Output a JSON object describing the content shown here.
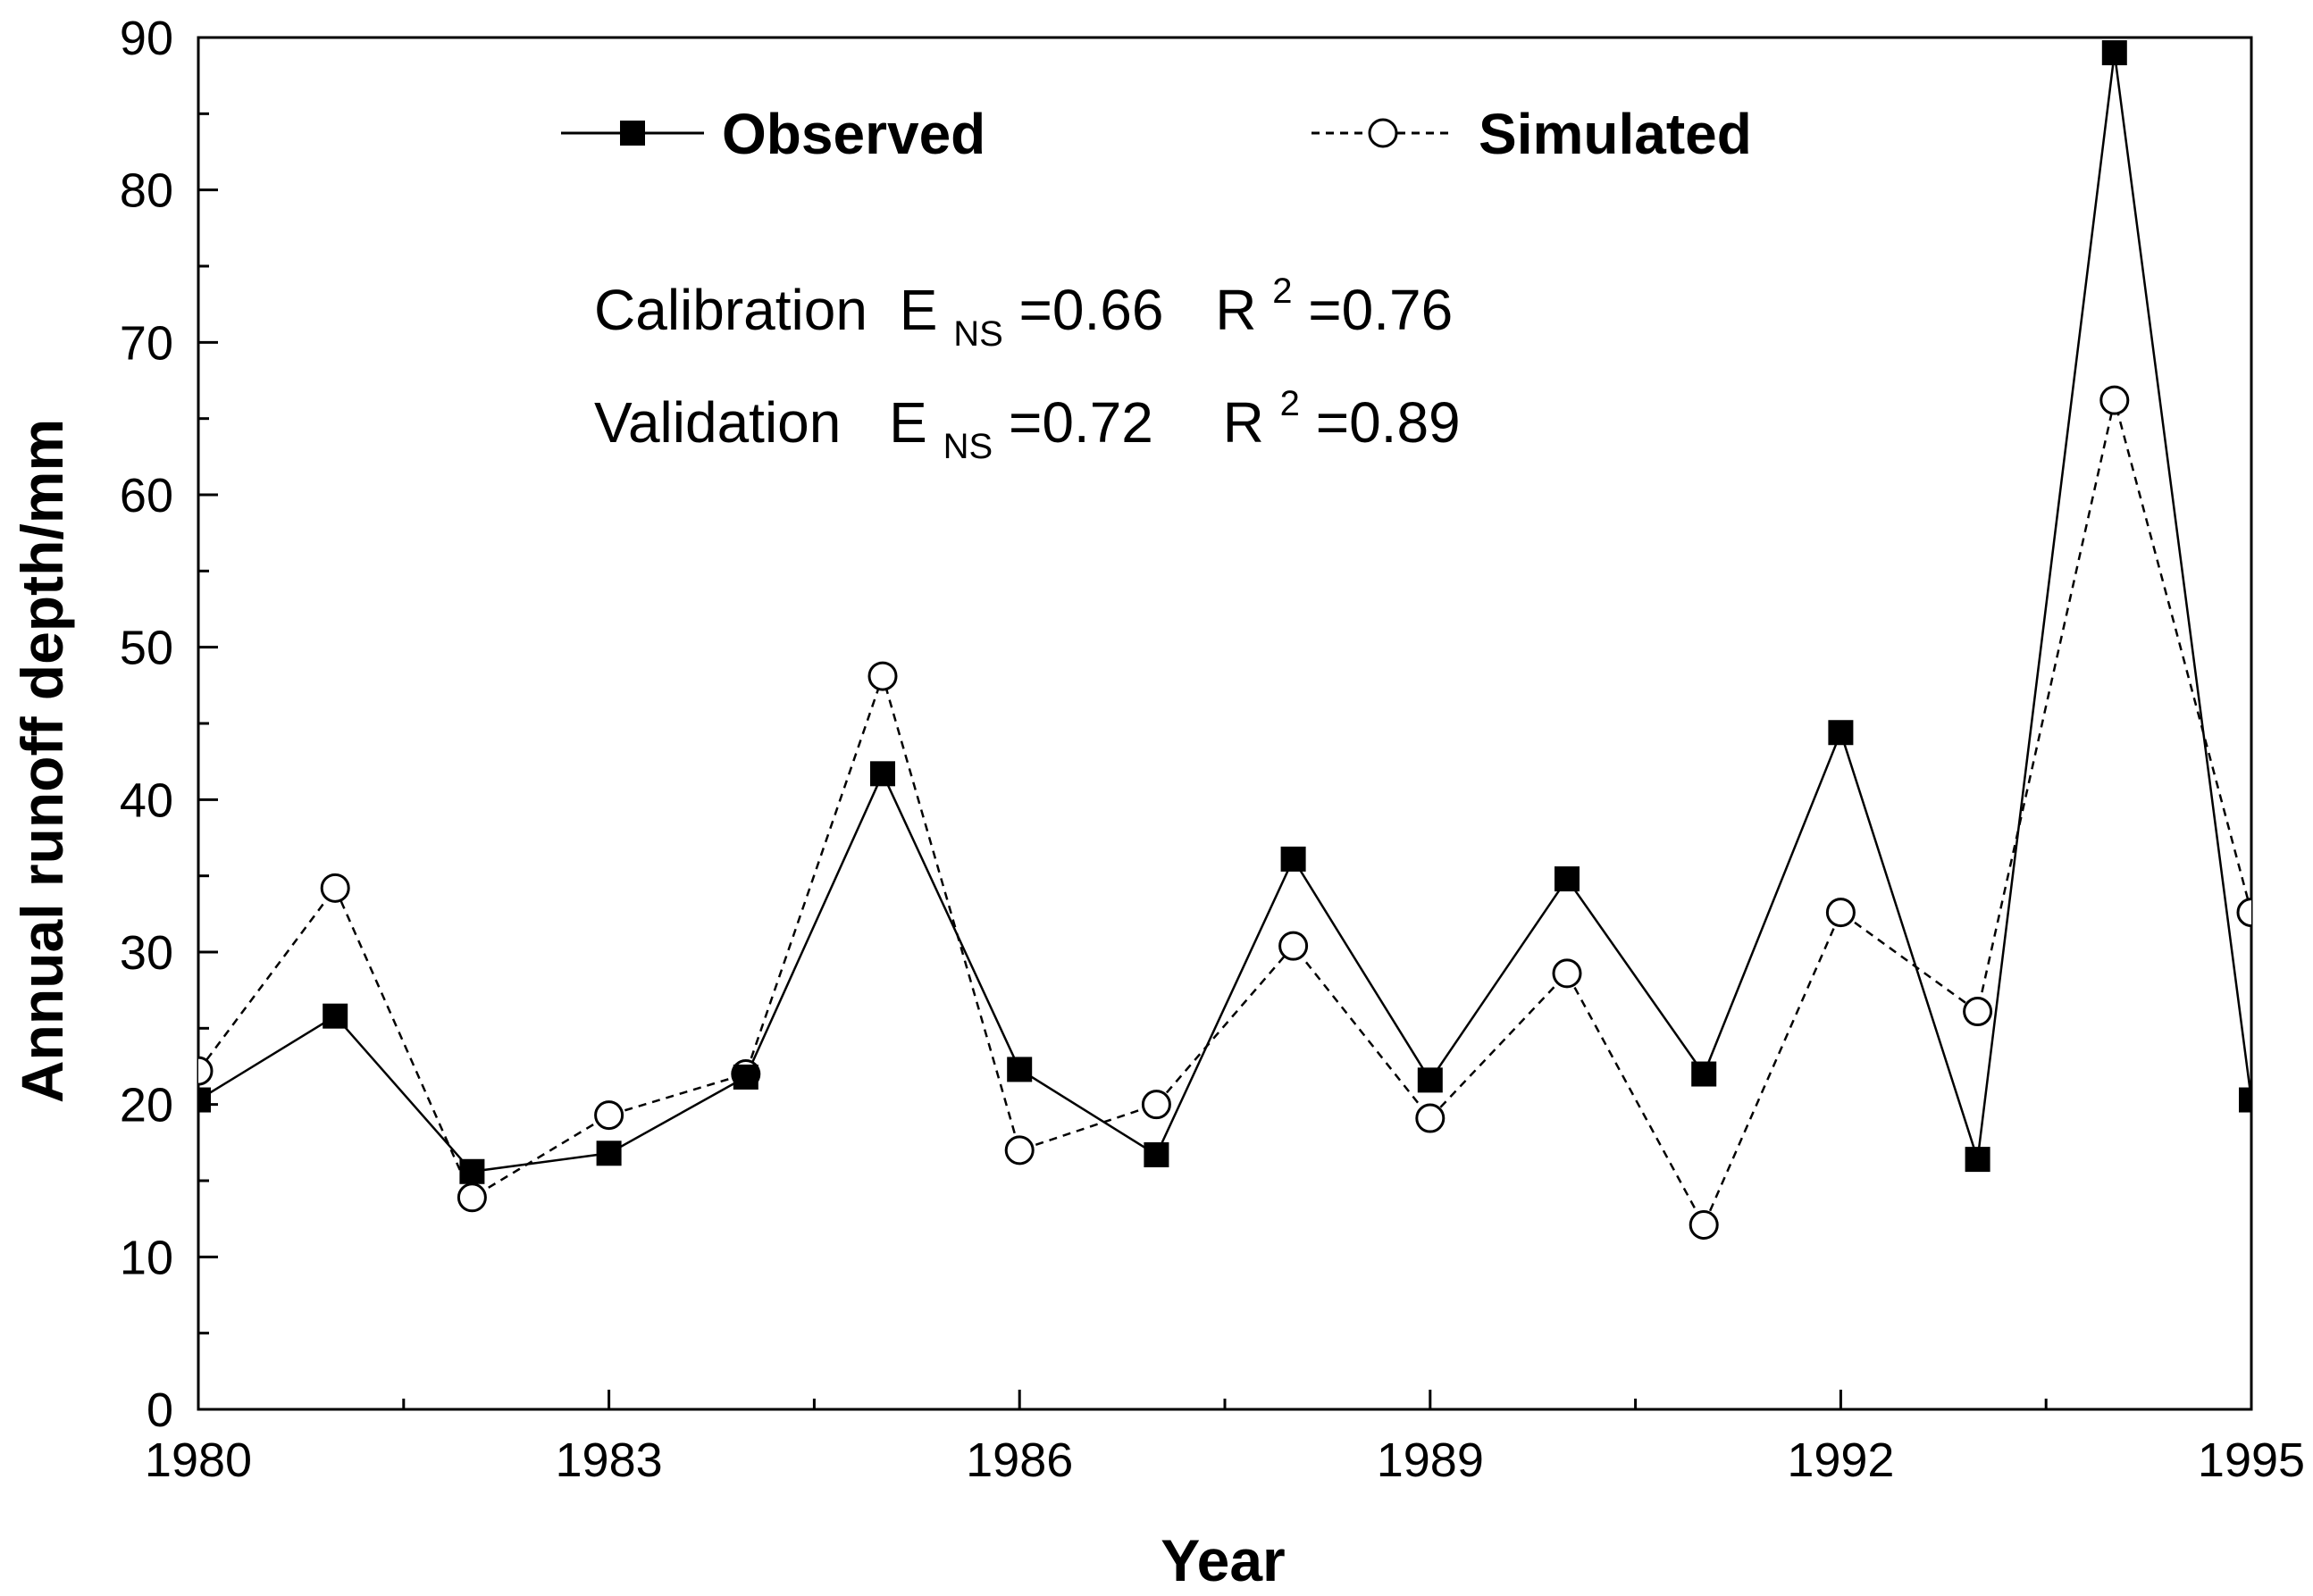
{
  "chart_data": {
    "type": "line",
    "x": [
      1980,
      1981,
      1982,
      1983,
      1984,
      1985,
      1986,
      1987,
      1988,
      1989,
      1990,
      1991,
      1992,
      1993,
      1994,
      1995
    ],
    "series": [
      {
        "name": "Observed",
        "marker": "filled-square",
        "line_style": "solid",
        "values": [
          20.3,
          25.8,
          15.6,
          16.8,
          21.8,
          41.7,
          22.3,
          16.7,
          36.1,
          21.6,
          34.8,
          22.0,
          44.4,
          16.4,
          89.0,
          20.3
        ]
      },
      {
        "name": "Simulated",
        "marker": "open-circle",
        "line_style": "dashed",
        "values": [
          22.2,
          34.2,
          13.9,
          19.3,
          22.0,
          48.1,
          17.0,
          20.0,
          30.4,
          19.1,
          28.6,
          12.1,
          32.6,
          26.1,
          66.2,
          32.6
        ]
      }
    ],
    "xlabel": "Year",
    "ylabel": "Annual runoff depth/mm",
    "xlim": [
      1980,
      1995
    ],
    "ylim": [
      0,
      90
    ],
    "x_ticks": [
      "1980",
      "1983",
      "1986",
      "1989",
      "1992",
      "1995"
    ],
    "y_ticks": [
      "0",
      "10",
      "20",
      "30",
      "40",
      "50",
      "60",
      "70",
      "80",
      "90"
    ],
    "legend": {
      "placement": "top-center",
      "entries": [
        "Observed",
        "Simulated"
      ]
    },
    "annotations": [
      {
        "label": "Calibration",
        "e_symbol": "E",
        "e_subscript": "NS",
        "e_value": "=0.66",
        "r_symbol": "R",
        "r_superscript": "2",
        "r_value": "=0.76"
      },
      {
        "label": "Validation",
        "e_symbol": "E",
        "e_subscript": "NS",
        "e_value": "=0.72",
        "r_symbol": "R",
        "r_superscript": "2",
        "r_value": "=0.89"
      }
    ],
    "grid": false
  }
}
